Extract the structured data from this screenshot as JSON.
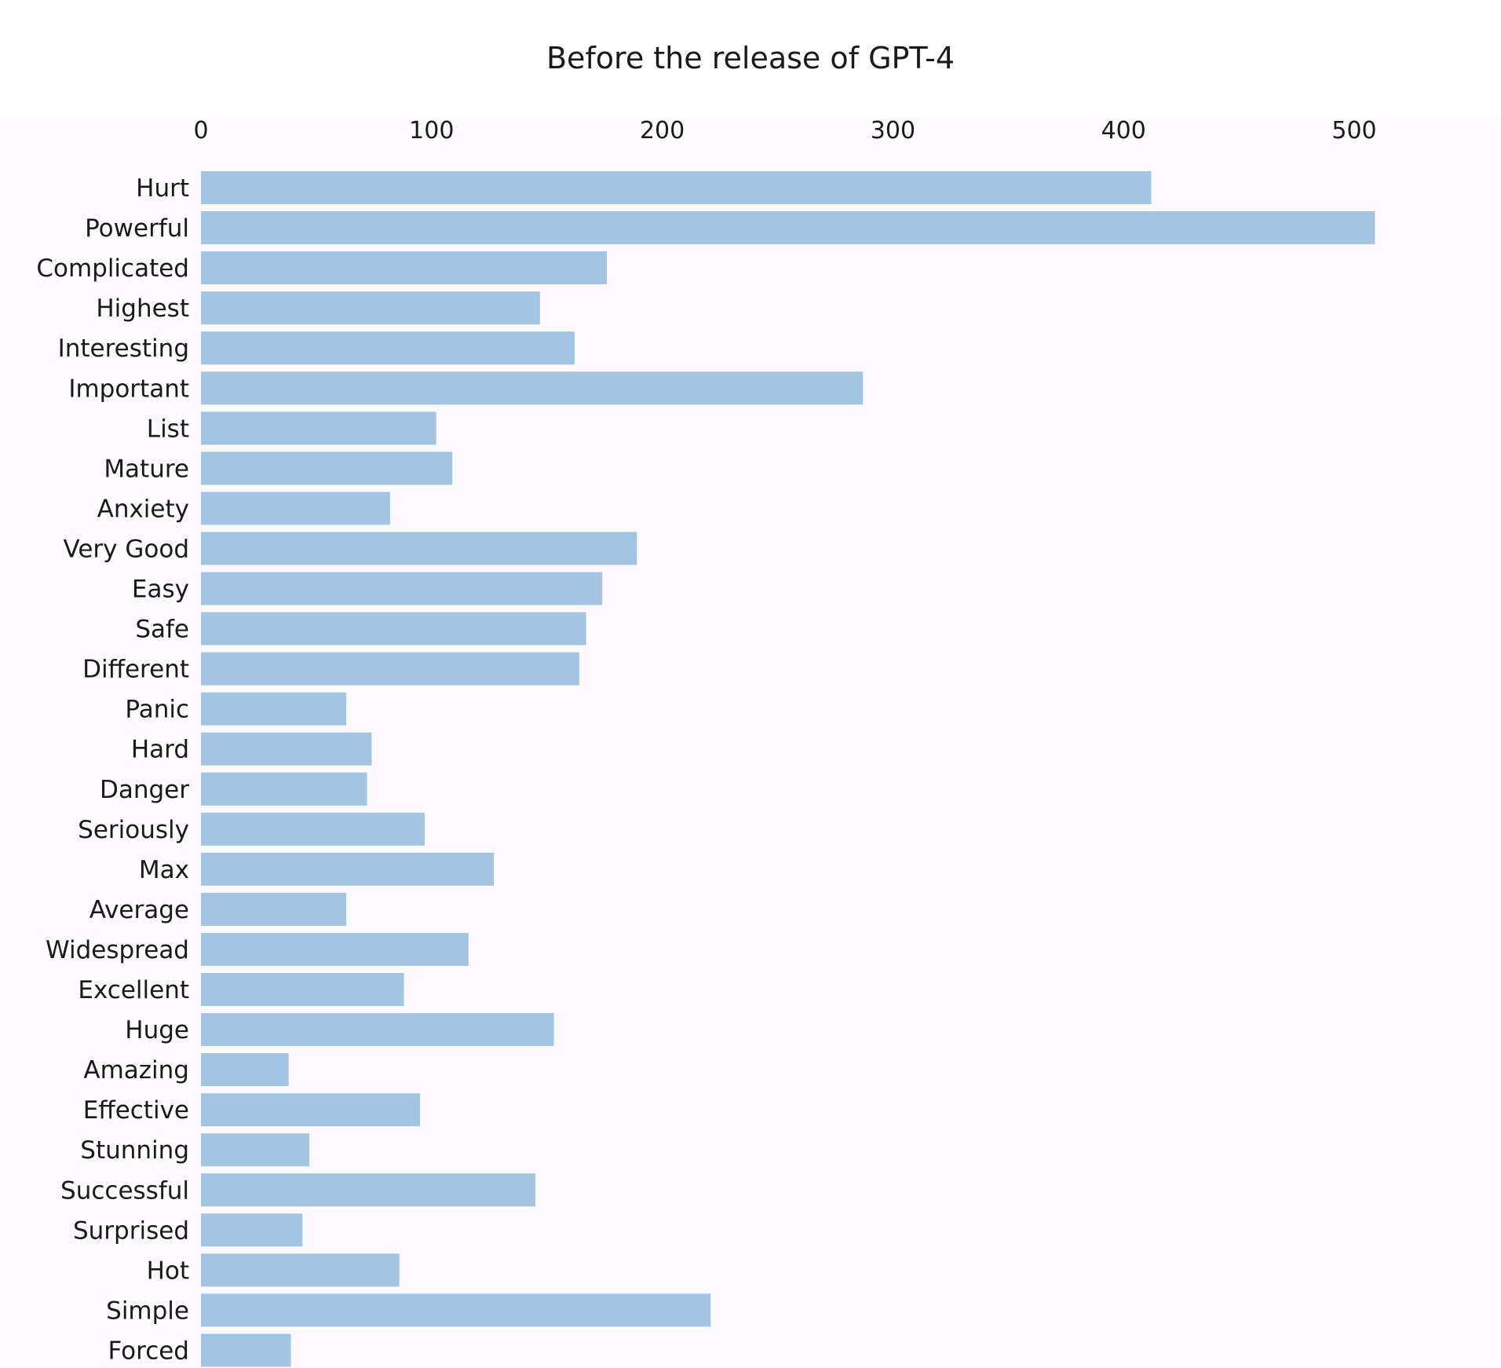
{
  "chart_data": {
    "type": "bar",
    "orientation": "horizontal",
    "title": "Before the release of GPT-4",
    "xlabel": "",
    "ylabel": "",
    "x_axis_position": "top",
    "xlim": [
      0,
      510
    ],
    "x_ticks": [
      0,
      100,
      200,
      300,
      400,
      500
    ],
    "grid": false,
    "legend": "none",
    "colors": {
      "bar": "#a3c4e2",
      "plot_background": "#fcfafd",
      "page_background": "#ffffff",
      "text": "#1a1a1a"
    },
    "categories": [
      "Hurt",
      "Powerful",
      "Complicated",
      "Highest",
      "Interesting",
      "Important",
      "List",
      "Mature",
      "Anxiety",
      "Very Good",
      "Easy",
      "Safe",
      "Different",
      "Panic",
      "Hard",
      "Danger",
      "Seriously",
      "Max",
      "Average",
      "Widespread",
      "Excellent",
      "Huge",
      "Amazing",
      "Effective",
      "Stunning",
      "Successful",
      "Surprised",
      "Hot",
      "Simple",
      "Forced"
    ],
    "values": [
      412,
      509,
      176,
      147,
      162,
      287,
      102,
      109,
      82,
      189,
      174,
      167,
      164,
      63,
      74,
      72,
      97,
      127,
      63,
      116,
      88,
      153,
      38,
      95,
      47,
      145,
      44,
      86,
      221,
      39
    ]
  }
}
